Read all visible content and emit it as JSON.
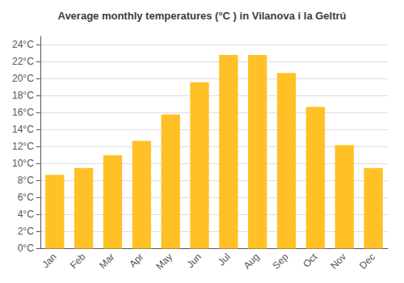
{
  "chart_data": {
    "type": "bar",
    "title": "Average monthly temperatures (°C ) in Vilanova i la Geltrú",
    "categories": [
      "Jan",
      "Feb",
      "Mar",
      "Apr",
      "May",
      "Jun",
      "Jul",
      "Aug",
      "Sep",
      "Oct",
      "Nov",
      "Dec"
    ],
    "values": [
      8.7,
      9.5,
      11.0,
      12.7,
      15.8,
      19.6,
      22.8,
      22.8,
      20.7,
      16.7,
      12.2,
      9.5
    ],
    "color": "#FFC125",
    "ylim": [
      0,
      25
    ],
    "yticks": [
      {
        "value": 0,
        "label": "0°C"
      },
      {
        "value": 2,
        "label": "2°C"
      },
      {
        "value": 4,
        "label": "4°C"
      },
      {
        "value": 6,
        "label": "6°C"
      },
      {
        "value": 8,
        "label": "8°C"
      },
      {
        "value": 10,
        "label": "10°C"
      },
      {
        "value": 12,
        "label": "12°C"
      },
      {
        "value": 14,
        "label": "14°C"
      },
      {
        "value": 16,
        "label": "16°C"
      },
      {
        "value": 18,
        "label": "18°C"
      },
      {
        "value": 20,
        "label": "20°C"
      },
      {
        "value": 22,
        "label": "22°C"
      },
      {
        "value": 24,
        "label": "24°C"
      }
    ],
    "grid": true
  }
}
